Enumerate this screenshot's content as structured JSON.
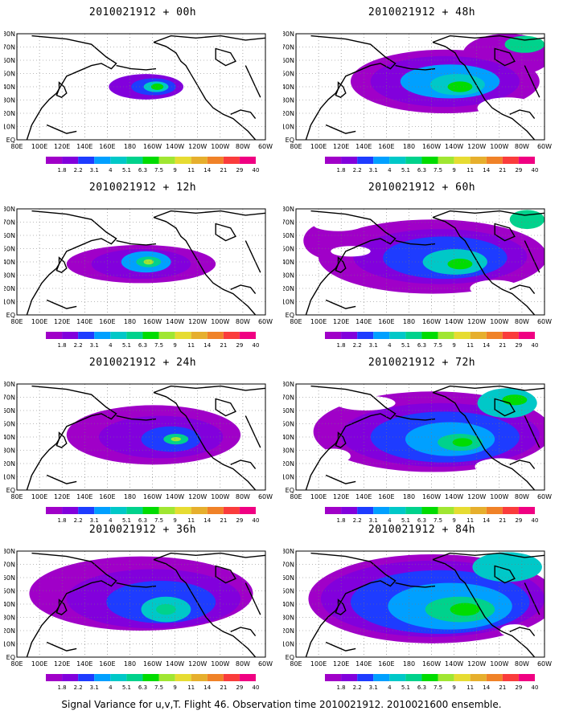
{
  "colorbar": {
    "labels": [
      "1.8",
      "2.2",
      "3.1",
      "4",
      "5.1",
      "6.3",
      "7.5",
      "9",
      "11",
      "14",
      "21",
      "29",
      "40"
    ],
    "colors": [
      "#a000c8",
      "#8200dc",
      "#1e3cff",
      "#00a0ff",
      "#00c8c8",
      "#00d28c",
      "#00dc00",
      "#a0e632",
      "#e6dc32",
      "#e6af2d",
      "#f08228",
      "#fa3c3c",
      "#f00082"
    ]
  },
  "lat_labels": [
    "80N",
    "70N",
    "60N",
    "50N",
    "40N",
    "30N",
    "20N",
    "10N",
    "EQ"
  ],
  "lon_labels": [
    "80E",
    "100E",
    "120E",
    "140E",
    "160E",
    "180",
    "160W",
    "140W",
    "120W",
    "100W",
    "80W",
    "60W"
  ],
  "panels": [
    {
      "title": "2010021912 + 00h"
    },
    {
      "title": "2010021912 + 48h"
    },
    {
      "title": "2010021912 + 12h"
    },
    {
      "title": "2010021912 + 60h"
    },
    {
      "title": "2010021912 + 24h"
    },
    {
      "title": "2010021912 + 72h"
    },
    {
      "title": "2010021912 + 36h"
    },
    {
      "title": "2010021912 + 84h"
    }
  ],
  "caption": "Signal Variance for u,v,T. Flight 46. Observation time 2010021912. 2010021600 ensemble."
}
